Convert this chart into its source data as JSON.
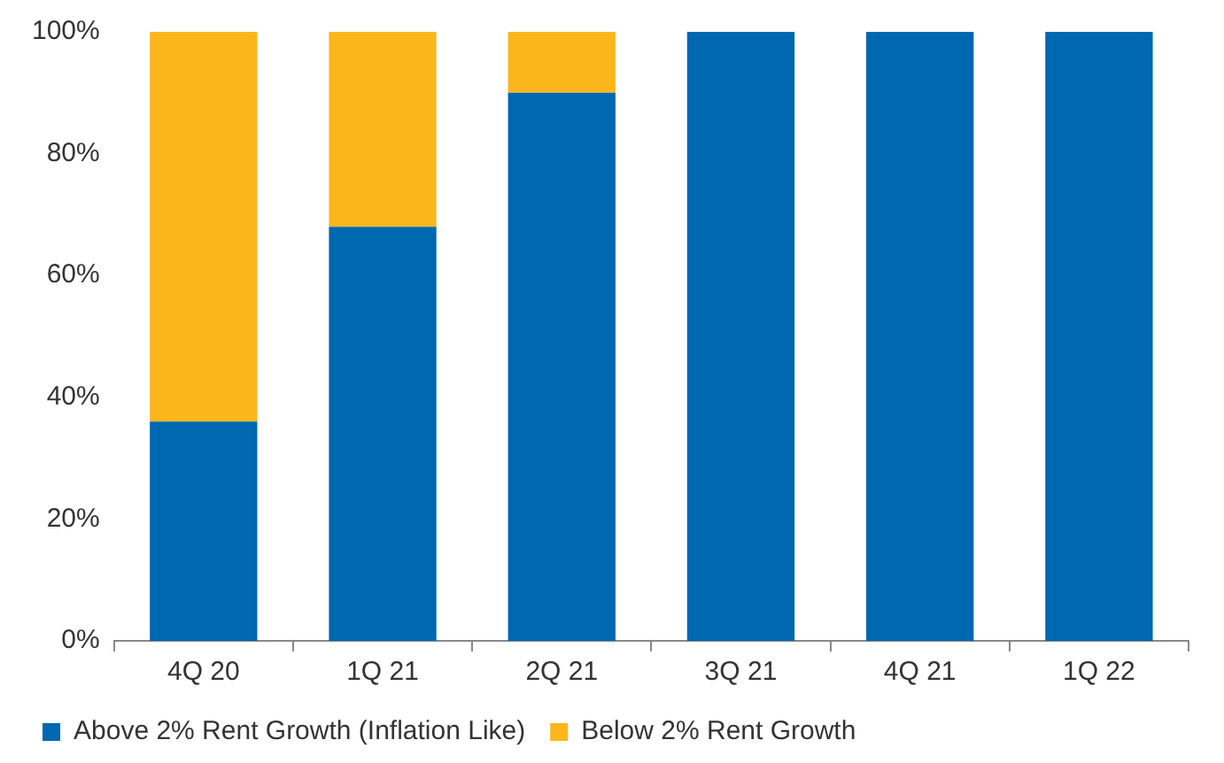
{
  "chart_data": {
    "type": "bar",
    "stacked": true,
    "categories": [
      "4Q 20",
      "1Q 21",
      "2Q 21",
      "3Q 21",
      "4Q 21",
      "1Q 22"
    ],
    "series": [
      {
        "name": "Above 2% Rent Growth (Inflation Like)",
        "color": "#0067b1",
        "values": [
          36,
          68,
          90,
          100,
          100,
          100
        ]
      },
      {
        "name": "Below 2% Rent Growth",
        "color": "#fbb61b",
        "values": [
          64,
          32,
          10,
          0,
          0,
          0
        ]
      }
    ],
    "ylim": [
      0,
      100
    ],
    "yticks": [
      {
        "value": 0,
        "label": "0%"
      },
      {
        "value": 20,
        "label": "20%"
      },
      {
        "value": 40,
        "label": "40%"
      },
      {
        "value": 60,
        "label": "60%"
      },
      {
        "value": 80,
        "label": "80%"
      },
      {
        "value": 100,
        "label": "100%"
      }
    ],
    "grid": false,
    "legend": "bottom"
  }
}
